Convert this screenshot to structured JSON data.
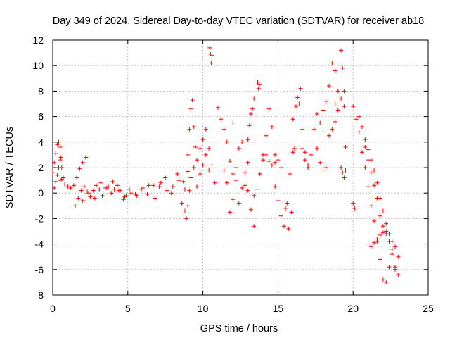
{
  "chart_data": {
    "type": "scatter",
    "title": "Day 349 of 2024, Sidereal Day-to-day VTEC variation (SDTVAR) for receiver ab18",
    "xlabel": "GPS time / hours",
    "ylabel": "SDTVAR / TECUs",
    "xlim": [
      0,
      25
    ],
    "ylim": [
      -8,
      12
    ],
    "xticks": [
      0,
      5,
      10,
      15,
      20,
      25
    ],
    "yticks": [
      -8,
      -6,
      -4,
      -2,
      0,
      2,
      4,
      6,
      8,
      10,
      12
    ],
    "xtick_labels": [
      "0",
      "5",
      "10",
      "15",
      "20",
      "25"
    ],
    "ytick_labels": [
      "-8",
      "-6",
      "-4",
      "-2",
      "0",
      "2",
      "4",
      "6",
      "8",
      "10",
      "12"
    ],
    "grid": true,
    "marker": "+",
    "color": "#ff0000",
    "series": [
      {
        "name": "SDTVAR",
        "segments": [
          {
            "x": [
              0.0,
              0.1,
              0.2,
              0.3,
              0.4,
              0.5,
              0.55,
              0.6,
              0.7
            ],
            "y": [
              1.6,
              2.4,
              3.1,
              3.8,
              4.0,
              3.6,
              2.8,
              2.0,
              1.2
            ]
          },
          {
            "x": [
              0.1,
              0.2,
              0.3,
              0.4,
              0.5,
              0.6
            ],
            "y": [
              0.4,
              0.9,
              1.4,
              2.0,
              2.6,
              1.1
            ]
          },
          {
            "x": [
              0.5,
              0.8,
              1.0,
              1.2,
              1.4,
              1.6,
              1.8,
              2.0,
              2.2
            ],
            "y": [
              1.0,
              0.7,
              0.5,
              0.4,
              0.6,
              1.2,
              1.9,
              2.4,
              2.8
            ]
          },
          {
            "x": [
              1.5,
              1.7,
              1.9,
              2.1,
              2.3,
              2.5,
              2.7,
              2.9,
              3.1,
              3.3,
              3.5,
              3.7,
              3.9,
              4.1,
              4.3,
              4.5,
              4.7,
              4.9,
              5.1
            ],
            "y": [
              -1.0,
              -0.4,
              0.2,
              0.5,
              0.1,
              -0.3,
              0.2,
              0.6,
              0.3,
              -0.2,
              0.4,
              0.5,
              0.0,
              0.3,
              0.6,
              0.2,
              -0.5,
              -0.2,
              0.3
            ]
          },
          {
            "x": [
              2.0,
              2.4,
              2.8,
              3.2,
              3.6,
              4.0,
              4.4,
              4.8,
              5.2,
              5.6,
              6.0,
              6.4,
              6.8,
              7.2,
              7.6,
              8.0,
              8.4,
              8.8
            ],
            "y": [
              -0.6,
              0.0,
              -0.4,
              0.8,
              0.4,
              0.9,
              0.2,
              -0.3,
              0.0,
              -0.2,
              0.4,
              0.6,
              -0.4,
              0.8,
              0.2,
              0.5,
              1.0,
              0.3
            ]
          },
          {
            "x": [
              5.5,
              5.9,
              6.3,
              6.7,
              7.1,
              7.5,
              7.9,
              8.3,
              8.7,
              9.0
            ],
            "y": [
              -0.1,
              0.3,
              -0.1,
              0.6,
              0.5,
              1.2,
              0.0,
              1.5,
              0.9,
              1.7
            ]
          },
          {
            "x": [
              8.6,
              8.8,
              8.9,
              9.0,
              9.1,
              9.2
            ],
            "y": [
              -0.8,
              -1.4,
              -2.0,
              -1.0,
              0.2,
              1.2
            ]
          },
          {
            "x": [
              9.0,
              9.1,
              9.2,
              9.3,
              9.4,
              9.5
            ],
            "y": [
              3.0,
              5.0,
              6.6,
              7.3,
              5.2,
              3.6
            ]
          },
          {
            "x": [
              9.2,
              9.4,
              9.6,
              9.8,
              10.0,
              10.2
            ],
            "y": [
              1.2,
              2.0,
              2.6,
              3.5,
              4.2,
              3.0
            ]
          },
          {
            "x": [
              9.6,
              9.8,
              10.0,
              10.2,
              10.4
            ],
            "y": [
              0.5,
              1.5,
              2.2,
              5.0,
              1.8
            ]
          },
          {
            "x": [
              10.45,
              10.5,
              10.55,
              10.6
            ],
            "y": [
              11.4,
              10.9,
              10.2,
              10.8
            ]
          },
          {
            "x": [
              10.4,
              10.6,
              10.8,
              11.0,
              11.2,
              11.4,
              11.6,
              11.8,
              12.0
            ],
            "y": [
              3.5,
              2.2,
              0.8,
              6.7,
              5.8,
              5.0,
              4.0,
              2.5,
              1.5
            ]
          },
          {
            "x": [
              11.4,
              11.6,
              11.8,
              12.0,
              12.2,
              12.4,
              12.6,
              12.8,
              13.0
            ],
            "y": [
              1.8,
              0.8,
              2.5,
              5.5,
              2.0,
              -0.8,
              0.4,
              1.6,
              2.4
            ]
          },
          {
            "x": [
              11.8,
              12.0,
              12.2,
              12.4,
              12.6,
              12.8,
              13.0,
              13.2,
              13.4
            ],
            "y": [
              -1.5,
              -0.5,
              1.0,
              3.5,
              4.0,
              0.6,
              0.2,
              -1.3,
              -2.6
            ]
          },
          {
            "x": [
              13.0,
              13.1,
              13.2,
              13.3,
              13.4
            ],
            "y": [
              4.2,
              5.3,
              6.2,
              6.6,
              7.4
            ]
          },
          {
            "x": [
              13.6,
              13.65,
              13.7,
              13.75
            ],
            "y": [
              9.1,
              8.7,
              8.2,
              8.5
            ]
          },
          {
            "x": [
              13.4,
              13.6,
              13.8,
              14.0,
              14.2,
              14.4,
              14.6,
              14.8
            ],
            "y": [
              -0.2,
              0.3,
              1.5,
              3.0,
              4.5,
              6.6,
              5.2,
              3.0
            ]
          },
          {
            "x": [
              14.0,
              14.2,
              14.4,
              14.6,
              14.8,
              15.0,
              15.2
            ],
            "y": [
              2.6,
              3.0,
              2.5,
              2.2,
              2.4,
              2.6,
              2.0
            ]
          },
          {
            "x": [
              14.8,
              15.0,
              15.2,
              15.4,
              15.6,
              15.8,
              16.0
            ],
            "y": [
              0.5,
              -0.6,
              -1.8,
              -2.6,
              -0.8,
              1.5,
              3.2
            ]
          },
          {
            "x": [
              15.5,
              15.7,
              15.9,
              16.1,
              16.3,
              16.5
            ],
            "y": [
              -1.2,
              -2.8,
              -1.5,
              3.5,
              7.5,
              8.2
            ]
          },
          {
            "x": [
              16.0,
              16.2,
              16.4,
              16.6,
              16.8,
              17.0
            ],
            "y": [
              5.8,
              6.8,
              7.0,
              5.0,
              3.2,
              2.0
            ]
          },
          {
            "x": [
              16.6,
              16.8,
              17.0,
              17.2,
              17.4,
              17.6,
              17.8,
              18.0
            ],
            "y": [
              3.5,
              2.6,
              2.2,
              3.0,
              5.0,
              6.2,
              5.5,
              4.8
            ]
          },
          {
            "x": [
              17.6,
              17.8,
              18.0,
              18.2,
              18.4,
              18.6,
              18.8
            ],
            "y": [
              3.5,
              2.4,
              1.8,
              2.0,
              4.5,
              5.0,
              7.0
            ]
          },
          {
            "x": [
              18.0,
              18.2,
              18.4,
              18.6,
              18.8,
              19.0,
              19.2,
              19.4
            ],
            "y": [
              6.5,
              7.2,
              8.4,
              10.2,
              9.6,
              8.0,
              7.4,
              6.8
            ]
          },
          {
            "x": [
              18.8,
              19.0,
              19.2,
              19.3,
              19.4,
              19.5
            ],
            "y": [
              5.6,
              6.5,
              11.2,
              9.8,
              8.0,
              3.6
            ]
          },
          {
            "x": [
              19.2,
              19.3,
              19.4,
              19.5
            ],
            "y": [
              2.0,
              1.6,
              1.2,
              1.8
            ]
          },
          {
            "x": [
              20.0,
              20.2,
              20.4,
              20.6,
              20.8,
              21.0,
              21.2,
              21.4,
              21.6,
              21.8,
              22.0,
              22.2,
              22.4,
              22.6,
              22.8,
              23.0
            ],
            "y": [
              6.8,
              5.8,
              4.8,
              3.2,
              2.0,
              0.5,
              -1.0,
              -2.2,
              -3.8,
              -5.2,
              -6.8,
              -7.0,
              -5.8,
              -4.8,
              -4.2,
              -5.0
            ]
          },
          {
            "x": [
              20.4,
              20.6,
              20.8,
              21.0,
              21.2,
              21.4,
              21.6,
              21.8,
              22.0,
              22.2,
              22.4,
              22.6,
              22.8
            ],
            "y": [
              6.0,
              5.2,
              4.2,
              3.4,
              2.6,
              1.8,
              0.8,
              -0.4,
              -1.4,
              -2.4,
              -3.2,
              -3.8,
              -6.0
            ]
          },
          {
            "x": [
              20.8,
              21.0,
              21.2,
              21.4,
              21.6,
              21.8,
              22.0,
              22.2,
              22.4,
              22.6,
              22.8,
              23.0
            ],
            "y": [
              3.6,
              2.6,
              1.6,
              0.6,
              -0.4,
              -1.8,
              -2.6,
              -3.2,
              -3.8,
              -4.4,
              -5.8,
              -6.4
            ]
          },
          {
            "x": [
              20.0,
              20.1
            ],
            "y": [
              -0.8,
              -1.2
            ]
          },
          {
            "x": [
              21.0,
              21.2,
              21.4,
              21.6,
              21.8,
              22.0,
              22.2
            ],
            "y": [
              -4.0,
              -4.2,
              -3.9,
              -3.6,
              -3.3,
              -3.1,
              -3.0
            ]
          }
        ]
      }
    ]
  }
}
